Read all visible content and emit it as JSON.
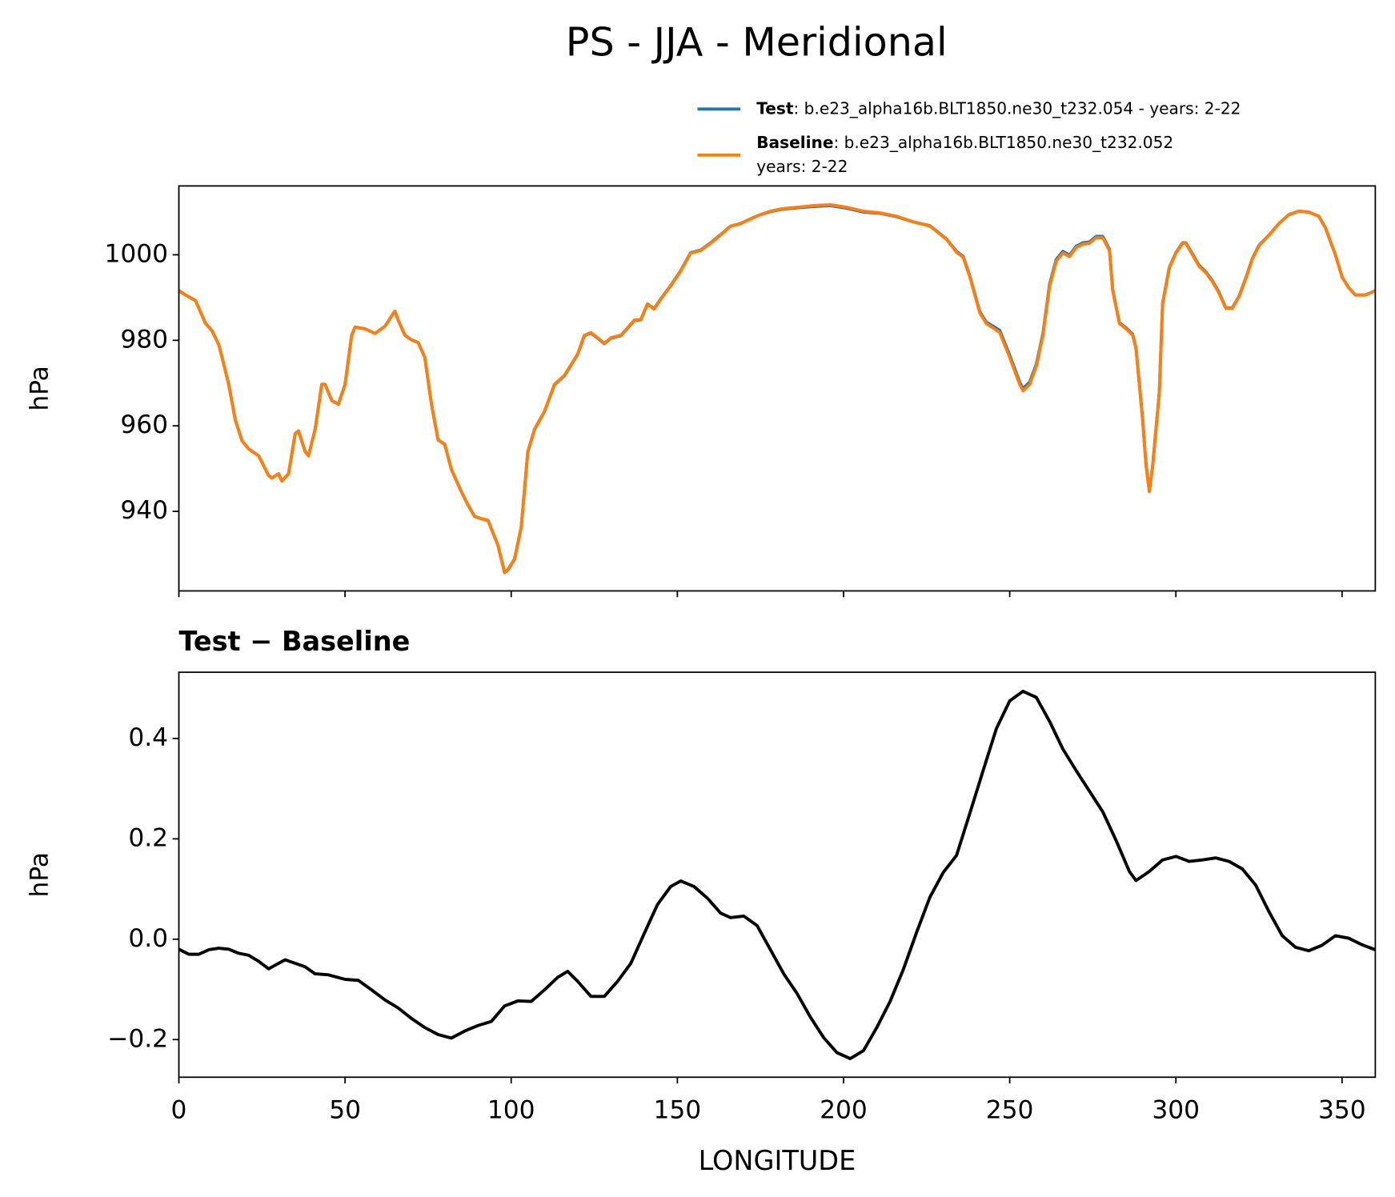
{
  "title": "PS - JJA - Meridional",
  "chart_data": [
    {
      "type": "line",
      "ylabel": "hPa",
      "x": [
        0,
        2,
        5,
        8,
        10,
        12,
        13,
        15,
        17,
        19,
        21,
        24,
        27,
        28,
        30,
        31,
        33,
        35,
        36,
        38,
        39,
        41,
        43,
        44,
        46,
        48,
        50,
        52,
        53,
        56,
        59,
        62,
        65,
        66,
        68,
        70,
        72,
        74,
        76,
        78,
        80,
        82,
        85,
        87,
        89,
        91,
        93,
        96,
        98,
        99,
        101,
        103,
        105,
        107,
        110,
        113,
        116,
        118,
        120,
        122,
        124,
        126,
        128,
        130,
        133,
        135,
        137,
        139,
        141,
        143,
        145,
        148,
        151,
        154,
        157,
        160,
        163,
        166,
        169,
        172,
        175,
        178,
        181,
        186,
        191,
        196,
        201,
        206,
        211,
        216,
        221,
        226,
        231,
        234,
        236,
        238,
        241,
        243,
        245,
        247,
        250,
        253,
        254,
        256,
        258,
        260,
        262,
        264,
        266,
        268,
        270,
        272,
        274,
        276,
        278,
        280,
        281,
        283,
        285,
        287,
        288,
        289,
        290,
        291,
        292,
        293,
        295,
        296,
        298,
        300,
        302,
        303,
        305,
        307,
        309,
        311,
        313,
        315,
        317,
        319,
        321,
        323,
        325,
        328,
        331,
        334,
        337,
        340,
        343,
        345,
        348,
        350,
        352,
        354,
        357,
        360
      ],
      "series": [
        {
          "name": "Test",
          "label": [
            ": b.e23_alpha16b.BLT1850.ne30_t232.054 - years: 2-22"
          ],
          "color": "#1f77b4",
          "values": [
            991.6,
            990.6,
            989.3,
            984,
            982.2,
            979,
            976,
            969.7,
            961.3,
            956.5,
            954.6,
            953,
            948.4,
            947.8,
            948.8,
            947.1,
            948.8,
            958.2,
            958.8,
            954,
            953,
            959.2,
            969.7,
            969.7,
            965.9,
            965.1,
            969.7,
            981.2,
            983.1,
            982.7,
            981.6,
            983.3,
            986.8,
            984.7,
            981.2,
            980.1,
            979.5,
            976,
            965.1,
            956.7,
            955.7,
            949.8,
            944.6,
            941.5,
            938.8,
            938.3,
            937.9,
            932.1,
            925.7,
            926.3,
            928.8,
            936.2,
            953.9,
            959.1,
            963.3,
            969.6,
            971.7,
            974.2,
            976.7,
            981.1,
            981.7,
            980.5,
            979.2,
            980.5,
            981.1,
            982.8,
            984.6,
            984.8,
            988.5,
            987.4,
            989.7,
            992.8,
            996.3,
            1000.5,
            1001.1,
            1002.8,
            1004.7,
            1006.7,
            1007.3,
            1008.4,
            1009.4,
            1010.1,
            1010.6,
            1011,
            1011.3,
            1011.5,
            1010.9,
            1010,
            1009.7,
            1008.9,
            1007.7,
            1006.8,
            1003.7,
            1000.8,
            999.6,
            995,
            986.7,
            984.2,
            983.3,
            982.3,
            976.5,
            970.2,
            968.7,
            970.2,
            974.4,
            981.6,
            993.1,
            998.9,
            1000.8,
            999.9,
            1002,
            1002.8,
            1003,
            1004.3,
            1004.3,
            1001.3,
            991.8,
            984.1,
            982.9,
            981.4,
            978.2,
            969.9,
            961.5,
            951.1,
            944.7,
            950.6,
            967.7,
            988.6,
            997,
            1000.5,
            1002.8,
            1002.8,
            1000.2,
            997.5,
            996,
            993.9,
            991.2,
            987.6,
            987.6,
            990.3,
            994.5,
            999.1,
            1002.2,
            1004.6,
            1007.3,
            1009.4,
            1010.2,
            1010,
            1009,
            1006.3,
            1000,
            994.8,
            992.3,
            990.6,
            990.6,
            991.6
          ]
        },
        {
          "name": "Baseline",
          "label": [
            ": b.e23_alpha16b.BLT1850.ne30_t232.052",
            "years: 2-22"
          ],
          "color": "#ff7f0e",
          "values": [
            991.6,
            990.6,
            989.3,
            984,
            982.2,
            979,
            976,
            969.7,
            961.3,
            956.5,
            954.6,
            953,
            948.4,
            947.8,
            948.8,
            947.1,
            948.8,
            958.2,
            958.8,
            954,
            953,
            959.2,
            969.7,
            969.7,
            965.9,
            965.1,
            969.7,
            981.2,
            983.1,
            982.7,
            981.6,
            983.3,
            986.8,
            984.7,
            981.2,
            980.1,
            979.5,
            976,
            965.1,
            956.7,
            955.7,
            949.8,
            944.6,
            941.5,
            938.8,
            938.3,
            937.9,
            932.1,
            925.8,
            926.4,
            928.9,
            936.3,
            954,
            959.2,
            963.4,
            969.7,
            971.8,
            974.3,
            976.8,
            981.2,
            981.8,
            980.6,
            979.3,
            980.6,
            981.2,
            982.9,
            984.7,
            984.9,
            988.5,
            987.3,
            989.6,
            992.7,
            996.2,
            1000.4,
            1001,
            1002.7,
            1004.6,
            1006.7,
            1007.3,
            1008.4,
            1009.4,
            1010.2,
            1010.7,
            1011.1,
            1011.5,
            1011.7,
            1011.1,
            1010.2,
            1009.8,
            1009,
            1007.7,
            1006.7,
            1003.6,
            1000.6,
            999.4,
            994.8,
            986.4,
            983.9,
            982.9,
            981.8,
            976,
            969.7,
            968.2,
            969.7,
            973.9,
            981.2,
            992.7,
            998.5,
            1000.4,
            999.6,
            1001.7,
            1002.5,
            1002.7,
            1004,
            1004,
            1001,
            991.6,
            983.9,
            982.7,
            981.2,
            978,
            969.7,
            961.3,
            950.9,
            944.6,
            950.5,
            967.6,
            988.5,
            996.9,
            1000.4,
            1002.7,
            1002.7,
            1000,
            997.3,
            995.8,
            993.7,
            991,
            987.5,
            987.5,
            990.2,
            994.4,
            999,
            1002.1,
            1004.6,
            1007.3,
            1009.4,
            1010.2,
            1010,
            1009,
            1006.3,
            1000,
            994.8,
            992.3,
            990.6,
            990.6,
            991.6
          ]
        }
      ],
      "xlim": [
        0,
        360
      ],
      "ylim": [
        921.4,
        1016.1
      ],
      "yticks": [
        940,
        960,
        980,
        1000
      ]
    },
    {
      "type": "line",
      "title": "Test − Baseline",
      "ylabel": "hPa",
      "xlabel": "LONGITUDE",
      "x": [
        0,
        3,
        6,
        9,
        12,
        15,
        18,
        21,
        24,
        27,
        30,
        32,
        35,
        38,
        41,
        45,
        50,
        54,
        58,
        62,
        66,
        70,
        74,
        78,
        82,
        86,
        90,
        94,
        98,
        102,
        106,
        110,
        114,
        117,
        120,
        124,
        128,
        132,
        136,
        140,
        144,
        148,
        151,
        155,
        159,
        163,
        166,
        170,
        174,
        178,
        182,
        186,
        190,
        194,
        198,
        202,
        206,
        210,
        214,
        218,
        222,
        226,
        230,
        234,
        238,
        242,
        246,
        250,
        254,
        258,
        262,
        266,
        270,
        274,
        278,
        282,
        286,
        288,
        292,
        296,
        300,
        304,
        308,
        312,
        316,
        320,
        324,
        328,
        332,
        336,
        340,
        344,
        348,
        352,
        356,
        360
      ],
      "color": "#000000",
      "values": [
        -0.02,
        -0.03,
        -0.03,
        -0.021,
        -0.018,
        -0.02,
        -0.028,
        -0.032,
        -0.044,
        -0.059,
        -0.048,
        -0.041,
        -0.048,
        -0.055,
        -0.069,
        -0.071,
        -0.08,
        -0.082,
        -0.101,
        -0.121,
        -0.137,
        -0.158,
        -0.176,
        -0.19,
        -0.197,
        -0.183,
        -0.172,
        -0.164,
        -0.133,
        -0.123,
        -0.124,
        -0.101,
        -0.076,
        -0.064,
        -0.084,
        -0.114,
        -0.114,
        -0.084,
        -0.048,
        0.011,
        0.069,
        0.105,
        0.116,
        0.105,
        0.082,
        0.052,
        0.043,
        0.046,
        0.027,
        -0.021,
        -0.069,
        -0.108,
        -0.155,
        -0.196,
        -0.226,
        -0.238,
        -0.222,
        -0.176,
        -0.124,
        -0.06,
        0.014,
        0.084,
        0.133,
        0.167,
        0.251,
        0.336,
        0.42,
        0.475,
        0.494,
        0.482,
        0.434,
        0.379,
        0.336,
        0.295,
        0.254,
        0.197,
        0.135,
        0.117,
        0.135,
        0.158,
        0.165,
        0.155,
        0.158,
        0.162,
        0.155,
        0.14,
        0.108,
        0.055,
        0.007,
        -0.016,
        -0.023,
        -0.012,
        0.007,
        0.002,
        -0.011,
        -0.021
      ],
      "xlim": [
        0,
        360
      ],
      "ylim": [
        -0.275,
        0.532
      ],
      "xticks": [
        0,
        50,
        100,
        150,
        200,
        250,
        300,
        350
      ],
      "yticks": [
        {
          "value": -0.2,
          "label": "−0.2"
        },
        {
          "value": 0,
          "label": "0.0"
        },
        0.2,
        0.4
      ]
    }
  ]
}
